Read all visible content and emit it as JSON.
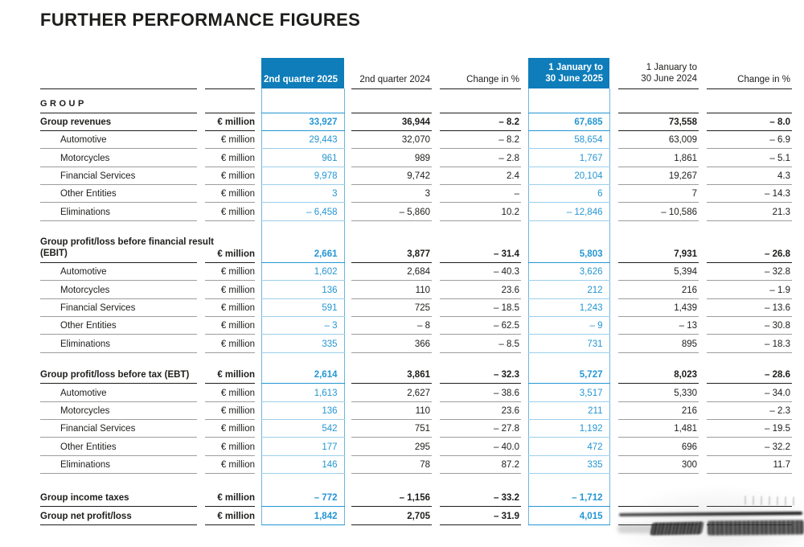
{
  "title": "FURTHER PERFORMANCE FIGURES",
  "colors": {
    "accent_blue_background": "#0e7dba",
    "accent_blue_text": "#2496d3",
    "ink": "#1d1d1b",
    "rule_gray": "#9d9d9d"
  },
  "table": {
    "group_label": "GROUP",
    "unit": "€ million",
    "headers": {
      "q2_2025": "2nd quarter 2025",
      "q2_2024": "2nd quarter 2024",
      "change_q": "Change in %",
      "h1_2025": [
        "1 January to",
        "30 June 2025"
      ],
      "h1_2024": [
        "1 January to",
        "30 June 2024"
      ],
      "change_h": "Change in %"
    },
    "sections": [
      {
        "rows": [
          {
            "label": "Group revenues",
            "bold": true,
            "values": [
              "33,927",
              "36,944",
              "– 8.2",
              "67,685",
              "73,558",
              "– 8.0"
            ]
          },
          {
            "label": "Automotive",
            "indent": true,
            "values": [
              "29,443",
              "32,070",
              "– 8.2",
              "58,654",
              "63,009",
              "– 6.9"
            ]
          },
          {
            "label": "Motorcycles",
            "indent": true,
            "values": [
              "961",
              "989",
              "– 2.8",
              "1,767",
              "1,861",
              "– 5.1"
            ]
          },
          {
            "label": "Financial Services",
            "indent": true,
            "values": [
              "9,978",
              "9,742",
              "2.4",
              "20,104",
              "19,267",
              "4.3"
            ]
          },
          {
            "label": "Other Entities",
            "indent": true,
            "values": [
              "3",
              "3",
              "–",
              "6",
              "7",
              "– 14.3"
            ]
          },
          {
            "label": "Eliminations",
            "indent": true,
            "values": [
              "– 6,458",
              "– 5,860",
              "10.2",
              "– 12,846",
              "– 10,586",
              "21.3"
            ]
          }
        ]
      },
      {
        "rows": [
          {
            "label": "Group profit/loss before financial result (EBIT)",
            "label_lines": [
              "Group profit/loss before financial result",
              "(EBIT)"
            ],
            "bold": true,
            "values": [
              "2,661",
              "3,877",
              "– 31.4",
              "5,803",
              "7,931",
              "– 26.8"
            ]
          },
          {
            "label": "Automotive",
            "indent": true,
            "values": [
              "1,602",
              "2,684",
              "– 40.3",
              "3,626",
              "5,394",
              "– 32.8"
            ]
          },
          {
            "label": "Motorcycles",
            "indent": true,
            "values": [
              "136",
              "110",
              "23.6",
              "212",
              "216",
              "– 1.9"
            ]
          },
          {
            "label": "Financial Services",
            "indent": true,
            "values": [
              "591",
              "725",
              "– 18.5",
              "1,243",
              "1,439",
              "– 13.6"
            ]
          },
          {
            "label": "Other Entities",
            "indent": true,
            "values": [
              "– 3",
              "– 8",
              "– 62.5",
              "– 9",
              "– 13",
              "– 30.8"
            ]
          },
          {
            "label": "Eliminations",
            "indent": true,
            "values": [
              "335",
              "366",
              "– 8.5",
              "731",
              "895",
              "– 18.3"
            ]
          }
        ]
      },
      {
        "rows": [
          {
            "label": "Group profit/loss before tax (EBT)",
            "bold": true,
            "values": [
              "2,614",
              "3,861",
              "– 32.3",
              "5,727",
              "8,023",
              "– 28.6"
            ]
          },
          {
            "label": "Automotive",
            "indent": true,
            "values": [
              "1,613",
              "2,627",
              "– 38.6",
              "3,517",
              "5,330",
              "– 34.0"
            ]
          },
          {
            "label": "Motorcycles",
            "indent": true,
            "values": [
              "136",
              "110",
              "23.6",
              "211",
              "216",
              "– 2.3"
            ]
          },
          {
            "label": "Financial Services",
            "indent": true,
            "values": [
              "542",
              "751",
              "– 27.8",
              "1,192",
              "1,481",
              "– 19.5"
            ]
          },
          {
            "label": "Other Entities",
            "indent": true,
            "values": [
              "177",
              "295",
              "– 40.0",
              "472",
              "696",
              "– 32.2"
            ]
          },
          {
            "label": "Eliminations",
            "indent": true,
            "values": [
              "146",
              "78",
              "87.2",
              "335",
              "300",
              "11.7"
            ]
          }
        ]
      },
      {
        "rows": [
          {
            "label": "Group income taxes",
            "bold": true,
            "values": [
              "– 772",
              "– 1,156",
              "– 33.2",
              "– 1,712",
              "",
              ""
            ]
          },
          {
            "label": "Group net profit/loss",
            "bold": true,
            "values": [
              "1,842",
              "2,705",
              "– 31.9",
              "4,015",
              "",
              ""
            ]
          }
        ]
      }
    ],
    "artifact_note": "illegible dark smudge obscuring the last two values of the final two rows"
  }
}
